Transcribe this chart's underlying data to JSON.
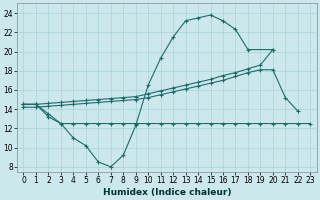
{
  "xlabel": "Humidex (Indice chaleur)",
  "bg_color": "#cce8ec",
  "grid_color": "#a8d4d8",
  "line_color": "#1e6b6b",
  "xlim": [
    -0.5,
    23.5
  ],
  "ylim": [
    7.5,
    25.0
  ],
  "xticks": [
    0,
    1,
    2,
    3,
    4,
    5,
    6,
    7,
    8,
    9,
    10,
    11,
    12,
    13,
    14,
    15,
    16,
    17,
    18,
    19,
    20,
    21,
    22,
    23
  ],
  "yticks": [
    8,
    10,
    12,
    14,
    16,
    18,
    20,
    22,
    24
  ],
  "line1_x": [
    0,
    1,
    2,
    3,
    4,
    5,
    6,
    7,
    8,
    9,
    10,
    11,
    12,
    13,
    14,
    15,
    16,
    17,
    18,
    20
  ],
  "line1_y": [
    14.5,
    14.5,
    13.2,
    12.5,
    11.0,
    10.2,
    8.5,
    8.0,
    9.2,
    12.3,
    16.5,
    19.3,
    21.5,
    23.2,
    23.5,
    23.8,
    23.2,
    22.3,
    20.2,
    20.2
  ],
  "line2_x": [
    0,
    1,
    2,
    3,
    4,
    5,
    6,
    7,
    8,
    9,
    10,
    11,
    12,
    13,
    14,
    15,
    16,
    17,
    18,
    19,
    20
  ],
  "line2_y": [
    14.5,
    14.5,
    14.6,
    14.7,
    14.8,
    14.9,
    15.0,
    15.1,
    15.2,
    15.3,
    15.6,
    15.9,
    16.2,
    16.5,
    16.8,
    17.1,
    17.5,
    17.8,
    18.2,
    18.6,
    20.2
  ],
  "line3_x": [
    0,
    1,
    2,
    3,
    4,
    5,
    6,
    7,
    8,
    9,
    10,
    11,
    12,
    13,
    14,
    15,
    16,
    17,
    18,
    19,
    20,
    21,
    22
  ],
  "line3_y": [
    14.2,
    14.2,
    14.3,
    14.4,
    14.5,
    14.6,
    14.7,
    14.8,
    14.9,
    15.0,
    15.2,
    15.5,
    15.8,
    16.1,
    16.4,
    16.7,
    17.0,
    17.4,
    17.8,
    18.1,
    18.1,
    15.2,
    13.8
  ],
  "line4_x": [
    0,
    1,
    2,
    3,
    4,
    5,
    6,
    7,
    8,
    9,
    10,
    11,
    12,
    13,
    14,
    15,
    16,
    17,
    18,
    19,
    20,
    21,
    22,
    23
  ],
  "line4_y": [
    14.5,
    14.5,
    13.5,
    12.5,
    12.5,
    12.5,
    12.5,
    12.5,
    12.5,
    12.5,
    12.5,
    12.5,
    12.5,
    12.5,
    12.5,
    12.5,
    12.5,
    12.5,
    12.5,
    12.5,
    12.5,
    12.5,
    12.5,
    12.5
  ]
}
